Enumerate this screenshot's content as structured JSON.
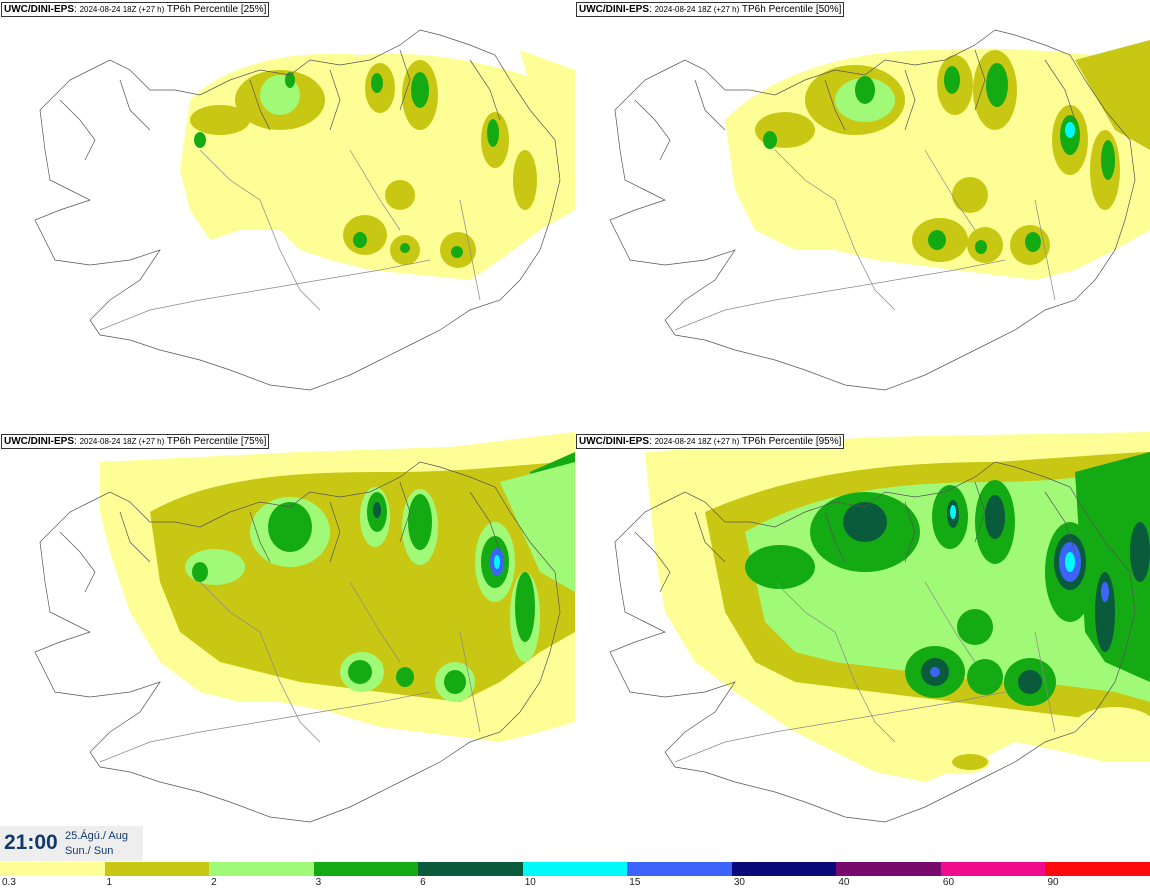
{
  "panels": [
    {
      "source": "UWC/DINI-EPS",
      "run": "2024-08-24 18Z (+27 h)",
      "field": "TP6h Percentile [25%]"
    },
    {
      "source": "UWC/DINI-EPS",
      "run": "2024-08-24 18Z (+27 h)",
      "field": "TP6h Percentile [50%]"
    },
    {
      "source": "UWC/DINI-EPS",
      "run": "2024-08-24 18Z (+27 h)",
      "field": "TP6h Percentile [75%]"
    },
    {
      "source": "UWC/DINI-EPS",
      "run": "2024-08-24 18Z (+27 h)",
      "field": "TP6h Percentile [95%]"
    }
  ],
  "valid_time": {
    "time": "21:00",
    "date": "25.Ágú./ Aug",
    "day": "Sun./ Sun"
  },
  "colorbar": {
    "labels": [
      "0.3",
      "1",
      "2",
      "3",
      "6",
      "10",
      "15",
      "30",
      "40",
      "60",
      "90"
    ],
    "colors": [
      "#fefe96",
      "#c8c814",
      "#a0fa78",
      "#14aa14",
      "#0a5a3c",
      "#00fafa",
      "#3c64fa",
      "#0a0a78",
      "#780a6e",
      "#f00a8c",
      "#fa0a0a"
    ]
  }
}
